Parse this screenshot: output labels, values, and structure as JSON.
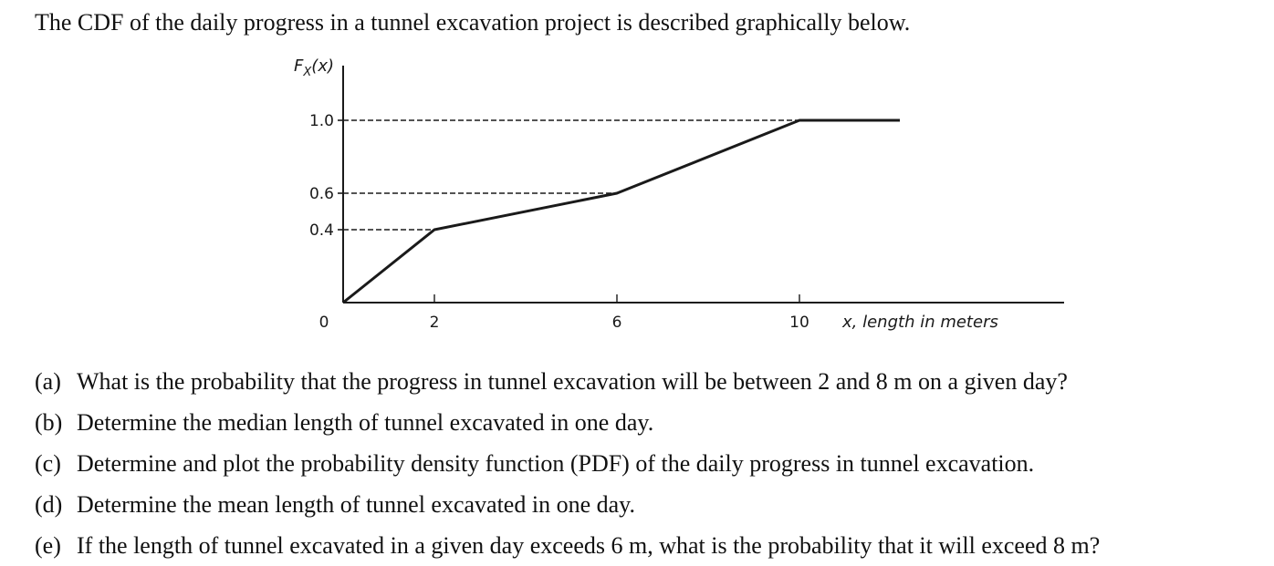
{
  "intro": "The CDF of the daily progress in a tunnel excavation project is described graphically below.",
  "chart_data": {
    "type": "line",
    "ylabel_base": "F",
    "ylabel_sub": "X",
    "ylabel_arg": "(x)",
    "xlabel": "x, length in meters",
    "x": [
      0,
      2,
      6,
      10,
      12.2
    ],
    "y": [
      0,
      0.4,
      0.6,
      1.0,
      1.0
    ],
    "x_ticks": [
      0,
      2,
      6,
      10
    ],
    "y_ticks": [
      0.4,
      0.6,
      1.0
    ],
    "x_tick_labels": [
      "0",
      "2",
      "6",
      "10"
    ],
    "y_tick_labels": [
      "0.4",
      "0.6",
      "1.0"
    ],
    "xlim": [
      0,
      15.8
    ],
    "ylim": [
      0,
      1.3
    ],
    "guides": [
      {
        "x": 2,
        "y": 0.4
      },
      {
        "x": 6,
        "y": 0.6
      },
      {
        "x": 10,
        "y": 1.0
      }
    ],
    "grid": false
  },
  "questions": [
    {
      "marker": "(a)",
      "text": "What is the probability that the progress in tunnel excavation will be between 2 and 8 m on a given day?"
    },
    {
      "marker": "(b)",
      "text": "Determine the median length of tunnel excavated in one day."
    },
    {
      "marker": "(c)",
      "text": "Determine and plot the probability density function (PDF) of the daily progress in tunnel excavation."
    },
    {
      "marker": "(d)",
      "text": "Determine the mean length of tunnel excavated in one day."
    },
    {
      "marker": "(e)",
      "text": "If the length of tunnel excavated in a given day exceeds 6 m, what is the probability that it will exceed 8 m?"
    }
  ]
}
